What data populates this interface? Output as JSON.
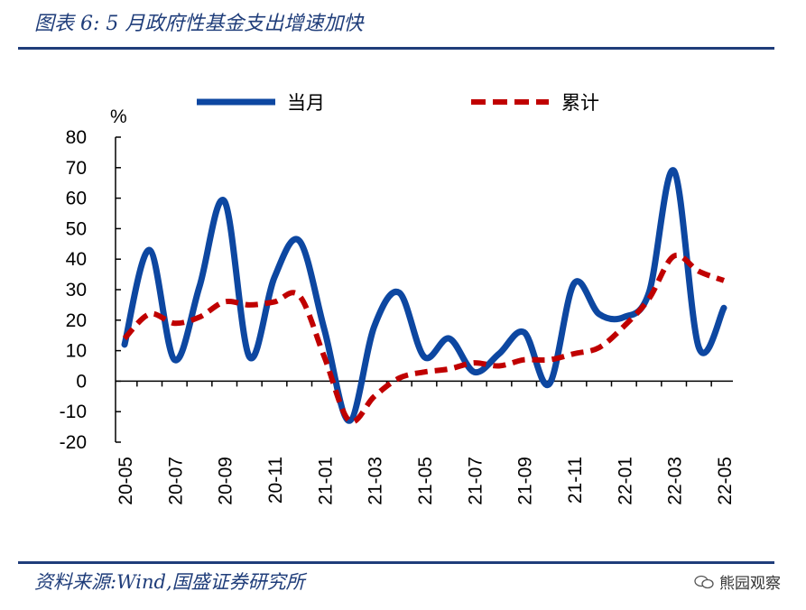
{
  "header": {
    "title": "图表 6:  5 月政府性基金支出增速加快"
  },
  "footer": {
    "source": "资料来源:Wind,国盛证券研究所",
    "watermark": "熊园观察"
  },
  "chart_data": {
    "type": "line",
    "title": "图表 6:  5 月政府性基金支出增速加快",
    "ylabel": "%",
    "ylim": [
      -20,
      80
    ],
    "yticks": [
      80,
      70,
      60,
      50,
      40,
      30,
      20,
      10,
      0,
      -10,
      -20
    ],
    "categories": [
      "20-05",
      "20-06",
      "20-07",
      "20-08",
      "20-09",
      "20-10",
      "20-11",
      "20-12",
      "21-01",
      "21-02",
      "21-03",
      "21-04",
      "21-05",
      "21-06",
      "21-07",
      "21-08",
      "21-09",
      "21-10",
      "21-11",
      "21-12",
      "22-01",
      "22-02",
      "22-03",
      "22-04",
      "22-05"
    ],
    "tick_labels": [
      "20-05",
      "20-07",
      "20-09",
      "20-11",
      "21-01",
      "21-03",
      "21-05",
      "21-07",
      "21-09",
      "21-11",
      "22-01",
      "22-03",
      "22-05"
    ],
    "series": [
      {
        "name": "当月",
        "color": "#0d47a1",
        "style": "solid",
        "values": [
          12,
          43,
          7,
          31,
          59,
          8,
          34,
          46,
          17,
          -13,
          18,
          29,
          8,
          14,
          3,
          9,
          16,
          -1,
          32,
          22,
          21,
          29,
          69,
          11,
          24
        ]
      },
      {
        "name": "累计",
        "color": "#c00000",
        "style": "dashed",
        "values": [
          14,
          22,
          19,
          21,
          26,
          25,
          26,
          28,
          8,
          -13,
          -5,
          1,
          3,
          4,
          6,
          5,
          7,
          7,
          9,
          11,
          18,
          27,
          41,
          36,
          33
        ]
      }
    ],
    "legend": [
      "当月",
      "累计"
    ]
  }
}
